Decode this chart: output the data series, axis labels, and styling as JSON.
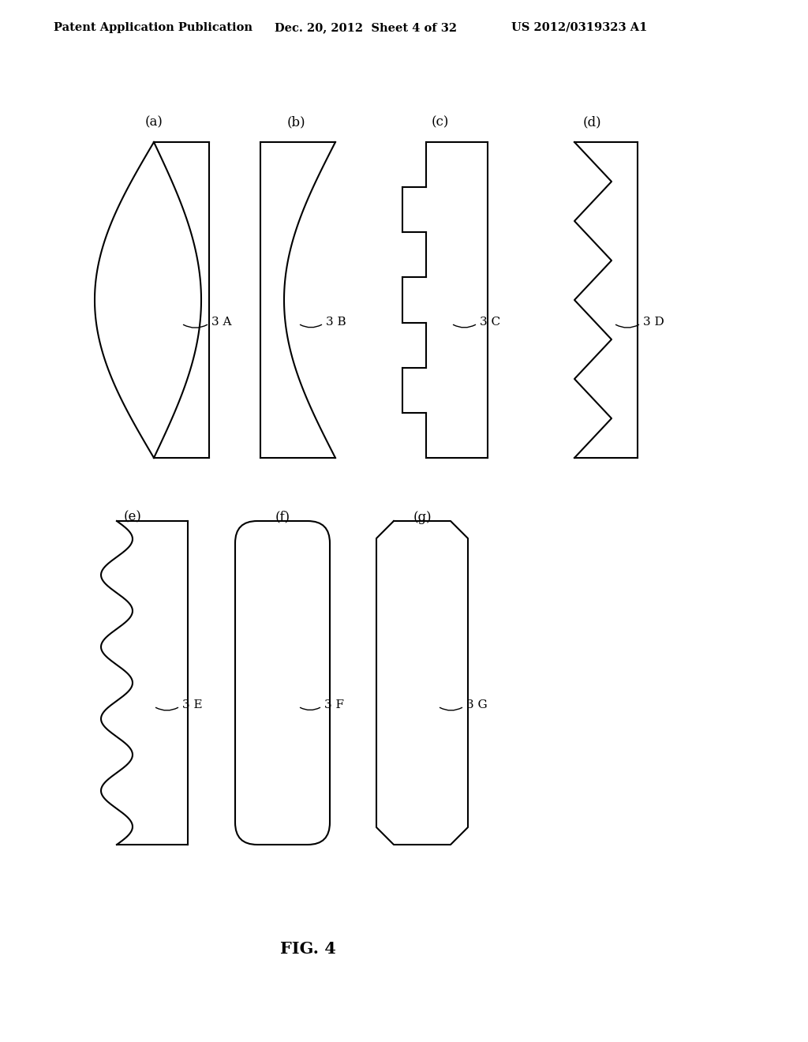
{
  "bg_color": "#ffffff",
  "line_color": "#000000",
  "header_left": "Patent Application Publication",
  "header_mid": "Dec. 20, 2012  Sheet 4 of 32",
  "header_right": "US 2012/0319323 A1",
  "fig_label": "FIG. 4"
}
